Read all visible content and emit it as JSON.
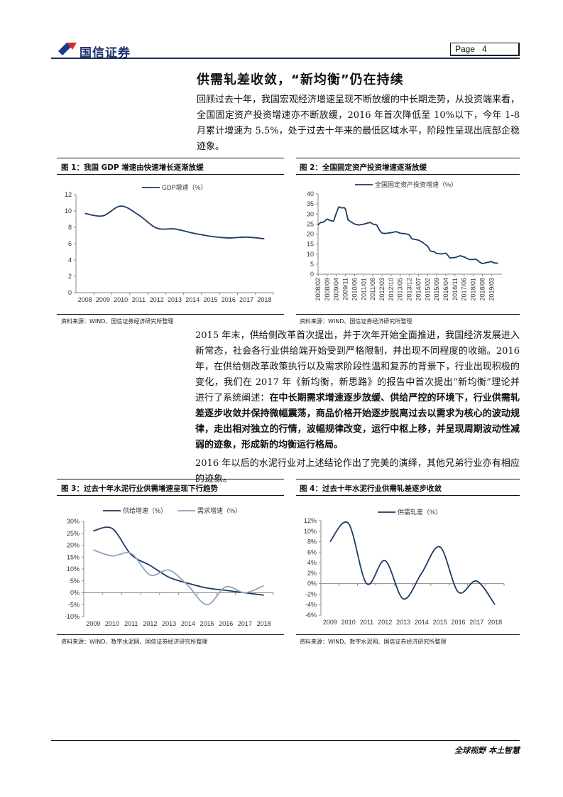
{
  "header": {
    "logo_text": "国信证券",
    "page_label": "Page",
    "page_number": "4"
  },
  "section_title": "供需轧差收敛，“新均衡”仍在持续",
  "paragraph1": "回顾过去十年，我国宏观经济增速呈现不断放缓的中长期走势，从投资端来看，全国固定资产投资增速亦不断放缓，2016 年首次降低至 10%以下，今年 1-8 月累计增速为 5.5%，处于过去十年来的最低区域水平，阶段性呈现出底部企稳迹象。",
  "paragraph2": {
    "normal": "2015 年末，供给侧改革首次提出，并于次年开始全面推进，我国经济发展进入新常态，社会各行业供给端开始受到严格限制，并出现不同程度的收缩。2016 年，在供给侧改革政策执行以及需求阶段性温和复苏的背景下，行业出现积极的变化，我们在 2017 年《新均衡，新思路》的报告中首次提出“新均衡”理论并进行了系统阐述：",
    "bold": "在中长期需求增速逐步放缓、供给严控的环境下，行业供需轧差逐步收敛并保持微幅震荡，商品价格开始逐步脱离过去以需求为核心的波动规律，走出相对独立的行情，波幅规律改变，运行中枢上移，并呈现周期波动性减弱的迹象，形成新的均衡运行格局。"
  },
  "paragraph3": "2016 年以后的水泥行业对上述结论作出了完美的演绎，其他兄弟行业亦有相应的迹象。",
  "figures": [
    {
      "caption": "图 1：我国 GDP 增速由快速增长逐渐放缓",
      "source": "资料来源：WIND、国信证券经济研究所整理"
    },
    {
      "caption": "图 2：全国固定资产投资增速逐渐放缓",
      "source": "资料来源：WIND、国信证券经济研究所整理"
    },
    {
      "caption": "图 3：过去十年水泥行业供需增速呈现下行趋势",
      "source": "资料来源：WIND、数字水泥网、国信证券经济研究所整理"
    },
    {
      "caption": "图 4：过去十年水泥行业供需轧差逐步收敛",
      "source": "资料来源：WIND、数字水泥网、国信证券经济研究所整理"
    }
  ],
  "chart_data": [
    {
      "type": "line",
      "categories": [
        "2008",
        "2009",
        "2010",
        "2011",
        "2012",
        "2013",
        "2014",
        "2015",
        "2016",
        "2017",
        "2018"
      ],
      "series": [
        {
          "name": "GDP增速（%）",
          "values": [
            9.7,
            9.4,
            10.6,
            9.5,
            7.9,
            7.8,
            7.3,
            6.9,
            6.7,
            6.8,
            6.6
          ],
          "color": "#1b3a63"
        }
      ],
      "yticks": [
        "0",
        "2",
        "4",
        "6",
        "8",
        "10",
        "12"
      ],
      "ylim": [
        0,
        12
      ],
      "legend": "top",
      "grid": false
    },
    {
      "type": "line",
      "xticks": [
        "2008/02",
        "2008/09",
        "2009/04",
        "2009/11",
        "2010/06",
        "2011/01",
        "2011/08",
        "2012/03",
        "2012/10",
        "2013/05",
        "2013/12",
        "2014/07",
        "2015/02",
        "2015/09",
        "2016/04",
        "2016/11",
        "2017/06",
        "2018/01",
        "2018/08",
        "2019/03"
      ],
      "series": [
        {
          "name": "全国固定资产投资增速（%）",
          "color": "#1b3a63",
          "points": [
            [
              "2008/02",
              24.5
            ],
            [
              "2008/04",
              25.8
            ],
            [
              "2008/06",
              25.9
            ],
            [
              "2008/09",
              27.5
            ],
            [
              "2008/11",
              26.8
            ],
            [
              "2009/01",
              26.5
            ],
            [
              "2009/02",
              26.5
            ],
            [
              "2009/04",
              30.5
            ],
            [
              "2009/06",
              33.6
            ],
            [
              "2009/08",
              33.0
            ],
            [
              "2009/10",
              33.2
            ],
            [
              "2009/11",
              32.5
            ],
            [
              "2010/01",
              27.0
            ],
            [
              "2010/03",
              26.2
            ],
            [
              "2010/06",
              25.0
            ],
            [
              "2010/09",
              24.5
            ],
            [
              "2011/01",
              24.9
            ],
            [
              "2011/04",
              25.5
            ],
            [
              "2011/06",
              25.8
            ],
            [
              "2011/08",
              25.0
            ],
            [
              "2011/11",
              24.5
            ],
            [
              "2012/01",
              22.0
            ],
            [
              "2012/03",
              20.5
            ],
            [
              "2012/06",
              20.3
            ],
            [
              "2012/10",
              20.7
            ],
            [
              "2013/02",
              21.2
            ],
            [
              "2013/05",
              20.4
            ],
            [
              "2013/09",
              20.2
            ],
            [
              "2013/12",
              19.6
            ],
            [
              "2014/02",
              17.6
            ],
            [
              "2014/07",
              17.0
            ],
            [
              "2014/10",
              15.9
            ],
            [
              "2015/02",
              14.0
            ],
            [
              "2015/04",
              11.6
            ],
            [
              "2015/07",
              11.2
            ],
            [
              "2015/09",
              10.3
            ],
            [
              "2016/01",
              10.1
            ],
            [
              "2016/04",
              10.5
            ],
            [
              "2016/06",
              9.0
            ],
            [
              "2016/07",
              8.1
            ],
            [
              "2016/11",
              8.3
            ],
            [
              "2017/03",
              9.2
            ],
            [
              "2017/06",
              8.6
            ],
            [
              "2017/10",
              7.3
            ],
            [
              "2018/01",
              7.3
            ],
            [
              "2018/03",
              7.5
            ],
            [
              "2018/06",
              6.0
            ],
            [
              "2018/08",
              5.3
            ],
            [
              "2018/12",
              5.9
            ],
            [
              "2019/03",
              6.3
            ],
            [
              "2019/05",
              5.6
            ],
            [
              "2019/08",
              5.5
            ]
          ]
        }
      ],
      "yticks": [
        "0",
        "5",
        "10",
        "15",
        "20",
        "25",
        "30",
        "35",
        "40"
      ],
      "ylim": [
        0,
        40
      ],
      "legend": "top",
      "grid": false
    },
    {
      "type": "line",
      "categories": [
        "2009",
        "2010",
        "2011",
        "2012",
        "2013",
        "2014",
        "2015",
        "2016",
        "2017",
        "2018"
      ],
      "series": [
        {
          "name": "供给增速（%）",
          "values": [
            26,
            27,
            16,
            11.5,
            6.5,
            4,
            2,
            1,
            0,
            -1
          ],
          "color": "#1b3a63"
        },
        {
          "name": "需求增速（%）",
          "values": [
            18,
            15.5,
            16.5,
            7.5,
            9.5,
            3,
            -5,
            2.5,
            0,
            3
          ],
          "color": "#8fa3b8"
        }
      ],
      "yticks": [
        "-10%",
        "-5%",
        "0%",
        "5%",
        "10%",
        "15%",
        "20%",
        "25%",
        "30%"
      ],
      "ylim": [
        -10,
        30
      ],
      "legend": "top",
      "grid": false
    },
    {
      "type": "line",
      "categories": [
        "2009",
        "2010",
        "2011",
        "2012",
        "2013",
        "2014",
        "2015",
        "2016",
        "2017",
        "2018"
      ],
      "series": [
        {
          "name": "供需轧差（%）",
          "values": [
            8,
            11.5,
            0,
            4.4,
            -2.9,
            2,
            7,
            -1.6,
            0.5,
            -4
          ],
          "color": "#1b3a63"
        }
      ],
      "yticks": [
        "-6%",
        "-4%",
        "-2%",
        "0%",
        "2%",
        "4%",
        "6%",
        "8%",
        "10%",
        "12%"
      ],
      "ylim": [
        -6,
        12
      ],
      "legend": "top",
      "grid": false
    }
  ],
  "footer": {
    "slogan": "全球视野  本土智慧"
  }
}
